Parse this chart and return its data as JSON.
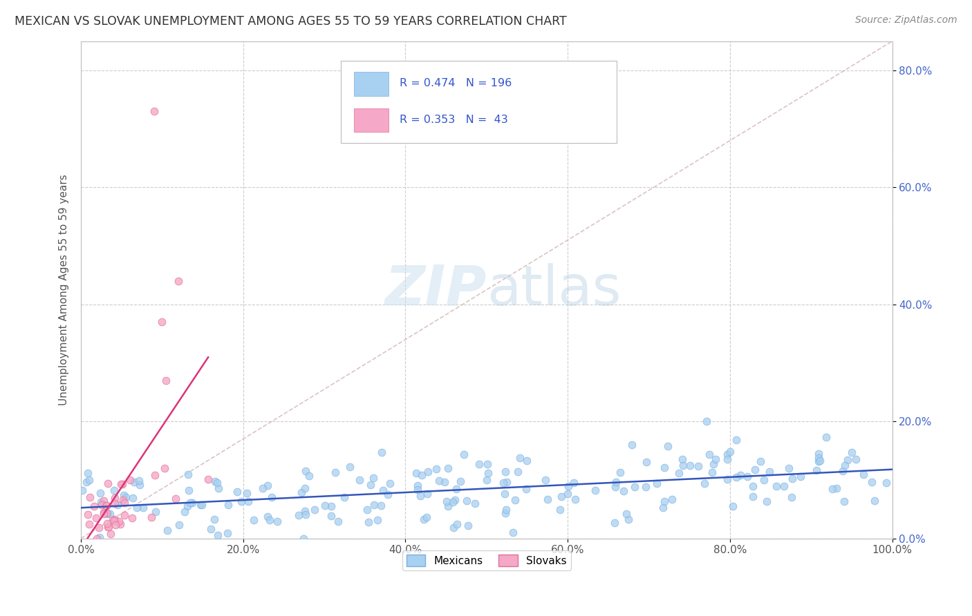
{
  "title": "MEXICAN VS SLOVAK UNEMPLOYMENT AMONG AGES 55 TO 59 YEARS CORRELATION CHART",
  "source": "Source: ZipAtlas.com",
  "ylabel": "Unemployment Among Ages 55 to 59 years",
  "xlim": [
    0.0,
    1.0
  ],
  "ylim": [
    0.0,
    0.85
  ],
  "x_ticks": [
    0.0,
    0.2,
    0.4,
    0.6,
    0.8,
    1.0
  ],
  "x_tick_labels": [
    "0.0%",
    "20.0%",
    "40.0%",
    "60.0%",
    "80.0%",
    "100.0%"
  ],
  "y_ticks": [
    0.0,
    0.2,
    0.4,
    0.6,
    0.8
  ],
  "y_tick_labels": [
    "0.0%",
    "20.0%",
    "40.0%",
    "60.0%",
    "80.0%"
  ],
  "mexican_color": "#a8d0f0",
  "mexican_edge": "#7aaee0",
  "slovak_color": "#f5a8c8",
  "slovak_edge": "#e07090",
  "trend_mexican_color": "#3355bb",
  "trend_slovak_color": "#dd3377",
  "diagonal_color": "#ccaaaa",
  "legend_mexican_label": "Mexicans",
  "legend_slovak_label": "Slovaks",
  "mexican_R": 0.474,
  "mexican_N": 196,
  "slovak_R": 0.353,
  "slovak_N": 43,
  "background_color": "#ffffff",
  "grid_color": "#cccccc"
}
